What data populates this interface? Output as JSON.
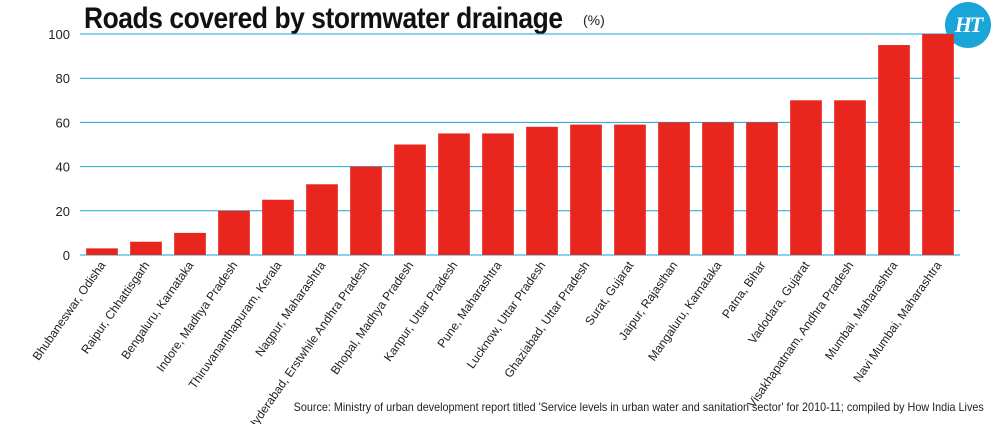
{
  "chart_data": {
    "type": "bar",
    "title": "Roads covered by stormwater drainage",
    "unit": "(%)",
    "xlabel": "",
    "ylabel": "",
    "ylim": [
      0,
      100
    ],
    "yticks": [
      0,
      20,
      40,
      60,
      80,
      100
    ],
    "grid": true,
    "categories": [
      "Bhubaneswar, Odisha",
      "Raipur, Chhattisgarh",
      "Bengaluru, Karnataka",
      "Indore, Madhya Pradesh",
      "Thiruvananthapuram, Kerala",
      "Nagpur, Maharashtra",
      "Hyderabad, Erstwhile Andhra Pradesh",
      "Bhopal, Madhya Pradesh",
      "Kanpur, Uttar Pradesh",
      "Pune, Maharashtra",
      "Lucknow, Uttar Pradesh",
      "Ghaziabad, Uttar Pradesh",
      "Surat, Gujarat",
      "Jaipur, Rajasthan",
      "Mangaluru, Karnataka",
      "Patna, Bihar",
      "Vadodara, Gujarat",
      "Visakhapatnam, Andhra Pradesh",
      "Mumbai, Maharashtra",
      "Navi Mumbai, Maharashtra"
    ],
    "values": [
      3,
      6,
      10,
      20,
      25,
      32,
      40,
      50,
      55,
      55,
      58,
      59,
      59,
      60,
      60,
      60,
      70,
      70,
      95,
      100
    ],
    "bar_color": "#e8261e",
    "grid_color": "#1aa3d4",
    "source": "Source: Ministry of urban development report titled 'Service levels in urban water and sanitation sector' for 2010-11; compiled by How India Lives"
  },
  "logo": {
    "text": "HT",
    "color": "#19a5d8"
  }
}
